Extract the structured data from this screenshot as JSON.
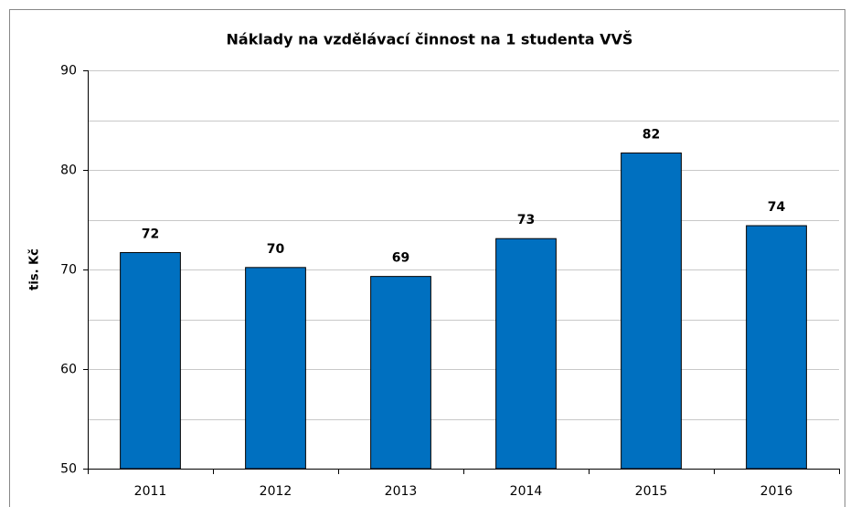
{
  "chart_data": {
    "type": "bar",
    "title": "Náklady na vzdělávací činnost na 1 studenta VVŠ",
    "y_label": "tis. Kč",
    "categories": [
      "2011",
      "2012",
      "2013",
      "2014",
      "2015",
      "2016"
    ],
    "values": [
      71.7,
      70.2,
      69.3,
      73.1,
      81.7,
      74.4
    ],
    "value_labels": [
      "72",
      "70",
      "69",
      "73",
      "82",
      "74"
    ],
    "color": "#0070c0",
    "ylim": [
      50,
      90
    ],
    "yticks": [
      50,
      60,
      70,
      80,
      90
    ],
    "yminorticks": [
      55,
      65,
      75,
      85
    ],
    "grid": true
  }
}
